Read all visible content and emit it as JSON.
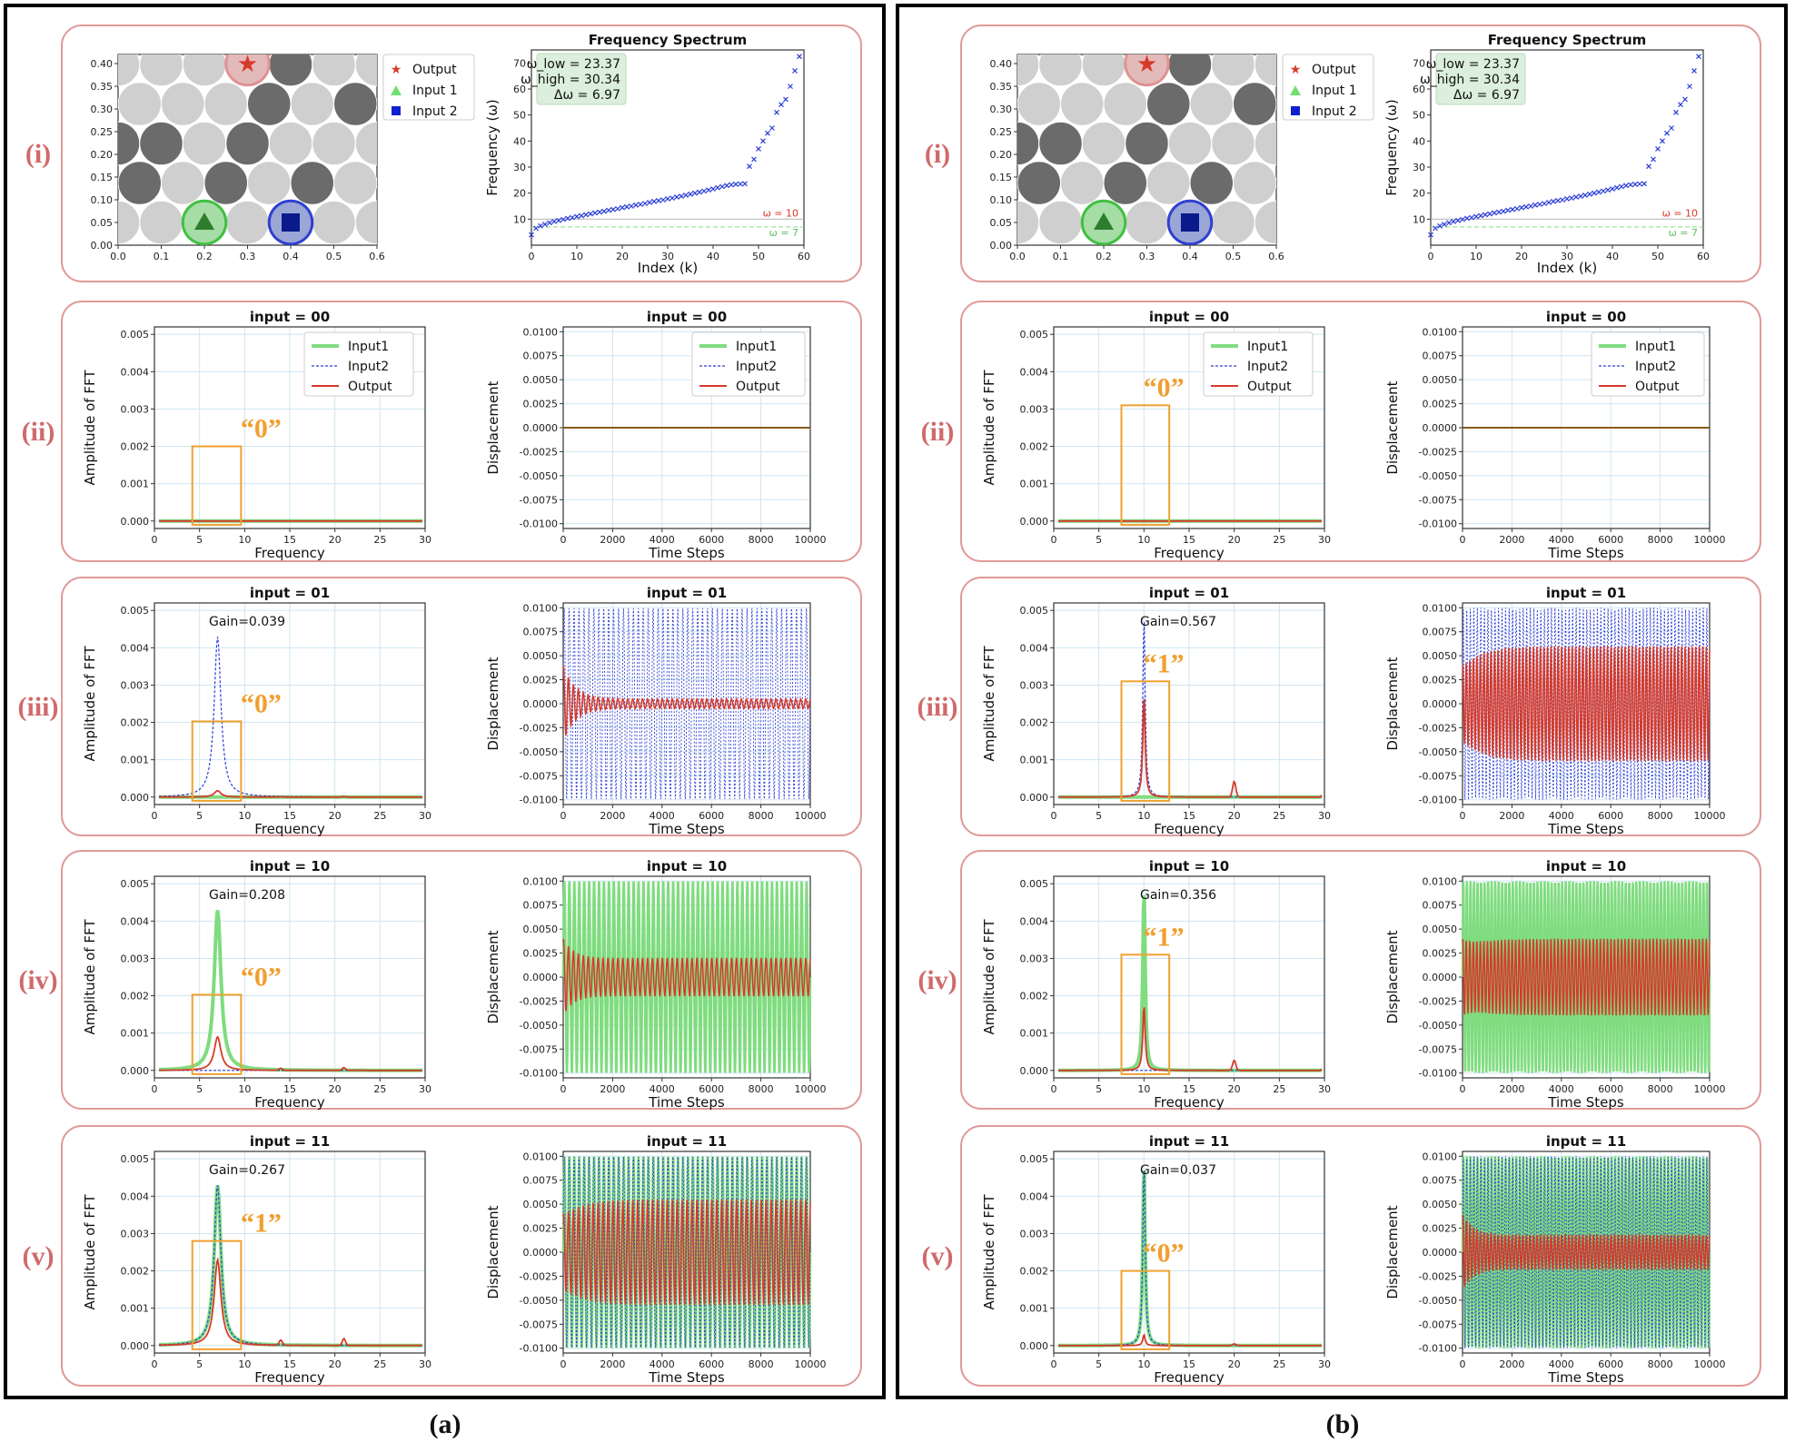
{
  "panel_labels": [
    "(a)",
    "(b)"
  ],
  "row_labels": [
    "(i)",
    "(ii)",
    "(iii)",
    "(iv)",
    "(v)"
  ],
  "colors": {
    "input1": "#7fdc7f",
    "input2": "#2a3dd6",
    "output": "#d63a2a",
    "frame": "#e09a9a",
    "highlight": "#f0a030",
    "label": "#d06a6a"
  },
  "chart_data": [
    {
      "panel": "(a)",
      "lattice": {
        "type": "scatter",
        "xlim": [
          0.0,
          0.6
        ],
        "ylim": [
          0.0,
          0.42
        ],
        "xticks": [
          "0.0",
          "0.1",
          "0.2",
          "0.3",
          "0.4",
          "0.5",
          "0.6"
        ],
        "yticks": [
          "0.00",
          "0.05",
          "0.10",
          "0.15",
          "0.20",
          "0.25",
          "0.30",
          "0.35",
          "0.40"
        ],
        "legend": [
          "Output",
          "Input 1",
          "Input 2"
        ],
        "output_pos": [
          0.3,
          0.4
        ],
        "input1_pos": [
          0.2,
          0.05
        ],
        "input2_pos": [
          0.4,
          0.05
        ],
        "dark_cells": [
          [
            0,
            1
          ],
          [
            2,
            1
          ],
          [
            4,
            1
          ],
          [
            3,
            3
          ],
          [
            5,
            3
          ],
          [
            4,
            4
          ],
          [
            1,
            2
          ],
          [
            3,
            2
          ],
          [
            0,
            2
          ]
        ]
      },
      "spectrum": {
        "type": "scatter",
        "title": "Frequency Spectrum",
        "xlabel": "Index (k)",
        "ylabel": "Frequency (ω)",
        "xlim": [
          0,
          60
        ],
        "ylim": [
          0,
          75
        ],
        "xticks": [
          "0",
          "10",
          "20",
          "30",
          "40",
          "50",
          "60"
        ],
        "yticks": [
          "10",
          "20",
          "30",
          "40",
          "50",
          "60",
          "70"
        ],
        "band_low": "ω_low = 23.37",
        "band_high": "ω_high = 30.34",
        "band_width": "Δω = 6.97",
        "line1_label": "ω = 10",
        "line1_value": 10,
        "line2_label": "ω = 7",
        "line2_value": 7,
        "values": [
          4,
          6.5,
          7.4,
          8,
          8.6,
          9.1,
          9.5,
          9.9,
          10.3,
          10.6,
          11,
          11.3,
          11.7,
          12,
          12.4,
          12.7,
          13,
          13.4,
          13.7,
          14,
          14.4,
          14.7,
          15,
          15.4,
          15.7,
          16,
          16.4,
          16.8,
          17.1,
          17.4,
          17.8,
          18.1,
          18.5,
          18.8,
          19.2,
          19.6,
          20,
          20.4,
          20.8,
          21.2,
          21.6,
          22.1,
          22.5,
          22.9,
          23.2,
          23.4,
          23.5,
          23.6,
          30.3,
          33,
          37,
          40,
          43,
          45,
          51,
          54,
          56,
          61,
          67,
          72.5
        ]
      },
      "rows": [
        {
          "row": "(ii)",
          "title": "input = 00",
          "gain": "",
          "quote": "“0”",
          "fft_peak_freq": 7,
          "fft_input1_peak": 0,
          "fft_input2_peak": 0,
          "fft_output_peak": 0,
          "disp_input1_amp": 0,
          "disp_input2_amp": 0,
          "disp_output_amp": 0
        },
        {
          "row": "(iii)",
          "title": "input = 01",
          "gain": "Gain=0.039",
          "quote": "“0”",
          "fft_peak_freq": 7,
          "fft_input1_peak": 0,
          "fft_input2_peak": 0.0043,
          "fft_output_peak": 0.00017,
          "disp_input1_amp": 0,
          "disp_input2_amp": 0.01,
          "disp_output_amp": 0.0005
        },
        {
          "row": "(iv)",
          "title": "input = 10",
          "gain": "Gain=0.208",
          "quote": "“0”",
          "fft_peak_freq": 7,
          "fft_input1_peak": 0.0043,
          "fft_input2_peak": 0,
          "fft_output_peak": 0.0009,
          "disp_input1_amp": 0.01,
          "disp_input2_amp": 0,
          "disp_output_amp": 0.002
        },
        {
          "row": "(v)",
          "title": "input = 11",
          "gain": "Gain=0.267",
          "quote": "“1”",
          "fft_peak_freq": 7,
          "fft_input1_peak": 0.0043,
          "fft_input2_peak": 0.0043,
          "fft_output_peak": 0.0023,
          "disp_input1_amp": 0.01,
          "disp_input2_amp": 0.01,
          "disp_output_amp": 0.0055
        }
      ]
    },
    {
      "panel": "(b)",
      "lattice": {
        "type": "scatter",
        "xlim": [
          0.0,
          0.6
        ],
        "ylim": [
          0.0,
          0.42
        ],
        "xticks": [
          "0.0",
          "0.1",
          "0.2",
          "0.3",
          "0.4",
          "0.5",
          "0.6"
        ],
        "yticks": [
          "0.00",
          "0.05",
          "0.10",
          "0.15",
          "0.20",
          "0.25",
          "0.30",
          "0.35",
          "0.40"
        ],
        "legend": [
          "Output",
          "Input 1",
          "Input 2"
        ],
        "output_pos": [
          0.3,
          0.4
        ],
        "input1_pos": [
          0.2,
          0.05
        ],
        "input2_pos": [
          0.4,
          0.05
        ],
        "dark_cells": [
          [
            0,
            1
          ],
          [
            2,
            1
          ],
          [
            4,
            1
          ],
          [
            3,
            3
          ],
          [
            5,
            3
          ],
          [
            4,
            4
          ],
          [
            1,
            2
          ],
          [
            3,
            2
          ],
          [
            0,
            2
          ]
        ]
      },
      "spectrum": {
        "type": "scatter",
        "title": "Frequency Spectrum",
        "xlabel": "Index (k)",
        "ylabel": "Frequency (ω)",
        "xlim": [
          0,
          60
        ],
        "ylim": [
          0,
          75
        ],
        "xticks": [
          "0",
          "10",
          "20",
          "30",
          "40",
          "50",
          "60"
        ],
        "yticks": [
          "10",
          "20",
          "30",
          "40",
          "50",
          "60",
          "70"
        ],
        "band_low": "ω_low = 23.37",
        "band_high": "ω_high = 30.34",
        "band_width": "Δω = 6.97",
        "line1_label": "ω = 10",
        "line1_value": 10,
        "line2_label": "ω = 7",
        "line2_value": 7,
        "values": [
          4,
          6.5,
          7.4,
          8,
          8.6,
          9.1,
          9.5,
          9.9,
          10.3,
          10.6,
          11,
          11.3,
          11.7,
          12,
          12.4,
          12.7,
          13,
          13.4,
          13.7,
          14,
          14.4,
          14.7,
          15,
          15.4,
          15.7,
          16,
          16.4,
          16.8,
          17.1,
          17.4,
          17.8,
          18.1,
          18.5,
          18.8,
          19.2,
          19.6,
          20,
          20.4,
          20.8,
          21.2,
          21.6,
          22.1,
          22.5,
          22.9,
          23.2,
          23.4,
          23.5,
          23.6,
          30.3,
          33,
          37,
          40,
          43,
          45,
          51,
          54,
          56,
          61,
          67,
          72.5
        ]
      },
      "rows": [
        {
          "row": "(ii)",
          "title": "input = 00",
          "gain": "",
          "quote": "“0”",
          "fft_peak_freq": 10,
          "fft_input1_peak": 0,
          "fft_input2_peak": 0,
          "fft_output_peak": 0,
          "disp_input1_amp": 0,
          "disp_input2_amp": 0,
          "disp_output_amp": 0
        },
        {
          "row": "(iii)",
          "title": "input = 01",
          "gain": "Gain=0.567",
          "quote": "“1”",
          "fft_peak_freq": 10,
          "fft_input1_peak": 0,
          "fft_input2_peak": 0.005,
          "fft_output_peak": 0.0028,
          "disp_input1_amp": 0,
          "disp_input2_amp": 0.01,
          "disp_output_amp": 0.006
        },
        {
          "row": "(iv)",
          "title": "input = 10",
          "gain": "Gain=0.356",
          "quote": "“1”",
          "fft_peak_freq": 10,
          "fft_input1_peak": 0.005,
          "fft_input2_peak": 0,
          "fft_output_peak": 0.0018,
          "disp_input1_amp": 0.01,
          "disp_input2_amp": 0,
          "disp_output_amp": 0.004
        },
        {
          "row": "(v)",
          "title": "input = 11",
          "gain": "Gain=0.037",
          "quote": "“0”",
          "fft_peak_freq": 10,
          "fft_input1_peak": 0.005,
          "fft_input2_peak": 0.005,
          "fft_output_peak": 0.0003,
          "disp_input1_amp": 0.01,
          "disp_input2_amp": 0.01,
          "disp_output_amp": 0.0018
        }
      ]
    }
  ],
  "fft_axes": {
    "xlabel": "Frequency",
    "ylabel": "Amplitude of FFT",
    "xticks": [
      "0",
      "5",
      "10",
      "15",
      "20",
      "25",
      "30"
    ],
    "yticks": [
      "0.000",
      "0.001",
      "0.002",
      "0.003",
      "0.004",
      "0.005"
    ],
    "xlim": [
      0,
      30
    ],
    "ylim": [
      0,
      0.005
    ]
  },
  "disp_axes": {
    "xlabel": "Time Steps",
    "ylabel": "Displacement",
    "xticks": [
      "0",
      "2000",
      "4000",
      "6000",
      "8000",
      "10000"
    ],
    "yticks": [
      "-0.0100",
      "-0.0075",
      "-0.0050",
      "-0.0025",
      "0.0000",
      "0.0025",
      "0.0050",
      "0.0075",
      "0.0100"
    ],
    "xlim": [
      0,
      10000
    ],
    "ylim": [
      -0.0105,
      0.0105
    ]
  },
  "legend_labels": [
    "Input1",
    "Input2",
    "Output"
  ]
}
